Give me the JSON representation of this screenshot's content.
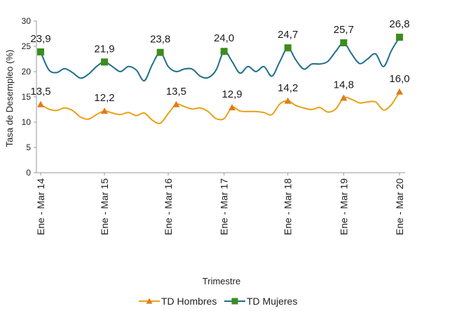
{
  "chart_data": {
    "type": "line",
    "title": "",
    "xlabel": "Trimestre",
    "ylabel": "Tasa de Desempleo (%)",
    "ylim": [
      0,
      30
    ],
    "yticks": [
      0,
      5,
      10,
      15,
      20,
      25,
      30
    ],
    "grid": false,
    "legend_position": "bottom",
    "x_tick_labels": [
      "Ene - Mar 14",
      "Ene - Mar 15",
      "Ene - Mar 16",
      "Ene - Mar 17",
      "Ene - Mar 18",
      "Ene - Mar 19",
      "Ene - Mar 20"
    ],
    "series": [
      {
        "name": "TD Hombres",
        "color": "#e8a117",
        "marker": "triangle",
        "marker_color": "#e07b1a",
        "values": [
          13.5,
          12.6,
          12.3,
          12.8,
          12.3,
          11.0,
          10.6,
          11.5,
          12.2,
          11.8,
          11.5,
          11.9,
          11.3,
          11.8,
          10.4,
          9.8,
          11.7,
          13.5,
          13.1,
          12.6,
          12.8,
          12.1,
          10.7,
          10.7,
          12.9,
          12.2,
          12.1,
          12.1,
          11.9,
          11.5,
          13.6,
          14.2,
          13.3,
          12.8,
          12.5,
          12.9,
          12.0,
          12.6,
          14.8,
          14.5,
          13.8,
          14.0,
          14.0,
          12.4,
          13.5,
          16.0
        ],
        "labeled_points": [
          {
            "index": 0,
            "label": "13,5"
          },
          {
            "index": 8,
            "label": "12,2"
          },
          {
            "index": 17,
            "label": "13,5"
          },
          {
            "index": 24,
            "label": "12,9"
          },
          {
            "index": 31,
            "label": "14,2"
          },
          {
            "index": 38,
            "label": "14,8"
          },
          {
            "index": 45,
            "label": "16,0"
          }
        ]
      },
      {
        "name": "TD Mujeres",
        "color": "#1f6e8c",
        "marker": "square",
        "marker_color": "#3c8c1e",
        "values": [
          23.9,
          20.4,
          19.8,
          20.6,
          19.8,
          18.7,
          19.5,
          21.0,
          21.9,
          21.0,
          20.0,
          21.0,
          20.3,
          18.2,
          21.4,
          23.8,
          21.0,
          20.0,
          20.5,
          20.5,
          19.1,
          18.8,
          20.3,
          24.0,
          22.0,
          19.7,
          21.0,
          20.0,
          21.0,
          19.1,
          22.0,
          24.7,
          22.3,
          20.5,
          21.5,
          21.5,
          22.0,
          24.0,
          25.7,
          23.5,
          21.6,
          22.5,
          23.5,
          21.0,
          24.2,
          26.8
        ],
        "labeled_points": [
          {
            "index": 0,
            "label": "23,9"
          },
          {
            "index": 8,
            "label": "21,9"
          },
          {
            "index": 15,
            "label": "23,8"
          },
          {
            "index": 23,
            "label": "24,0"
          },
          {
            "index": 31,
            "label": "24,7"
          },
          {
            "index": 38,
            "label": "25,7"
          },
          {
            "index": 45,
            "label": "26,8"
          }
        ]
      }
    ],
    "x_tick_indices": [
      0,
      8,
      16,
      23,
      31,
      38,
      45
    ]
  }
}
